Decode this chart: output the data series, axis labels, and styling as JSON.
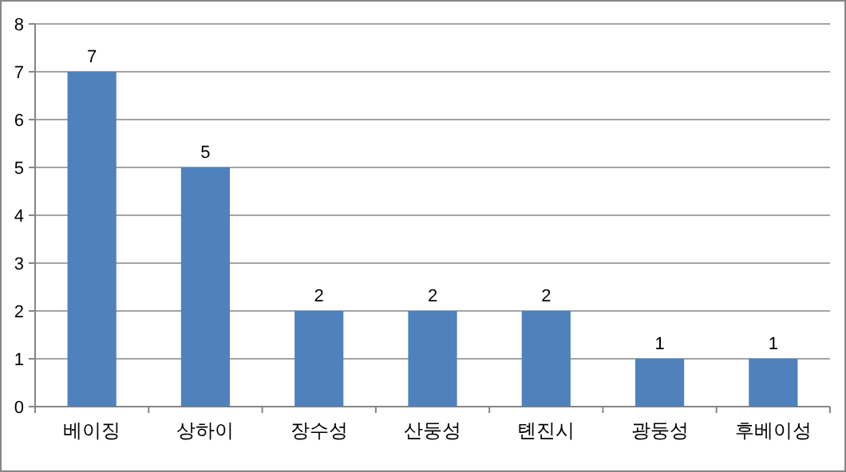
{
  "chart_data": {
    "type": "bar",
    "categories": [
      "베이징",
      "상하이",
      "장수성",
      "산둥성",
      "톈진시",
      "광둥성",
      "후베이성"
    ],
    "values": [
      7,
      5,
      2,
      2,
      2,
      1,
      1
    ],
    "color": "#4f81bd",
    "ylim": [
      0,
      8
    ],
    "yticks": [
      0,
      1,
      2,
      3,
      4,
      5,
      6,
      7,
      8
    ],
    "grid": "y",
    "data_labels": true
  }
}
